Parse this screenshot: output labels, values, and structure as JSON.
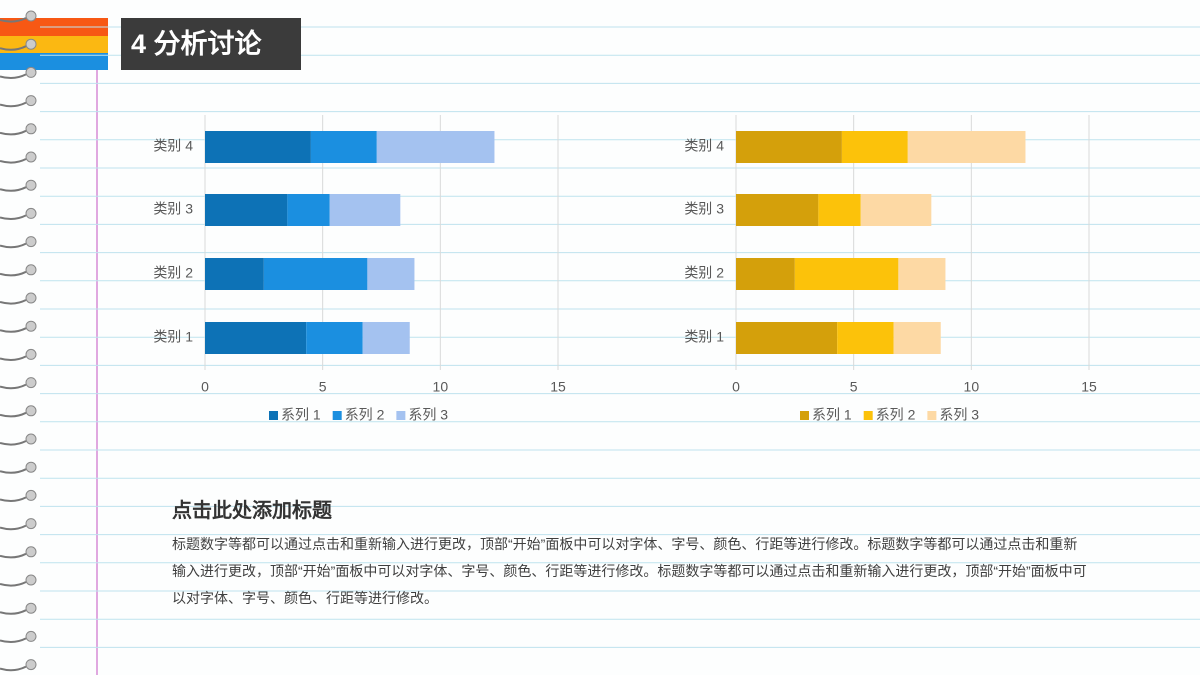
{
  "header": {
    "title": "4 分析讨论"
  },
  "section": {
    "heading": "点击此处添加标题",
    "body": "标题数字等都可以通过点击和重新输入进行更改，顶部“开始”面板中可以对字体、字号、颜色、行距等进行修改。标题数字等都可以通过点击和重新输入进行更改，顶部“开始”面板中可以对字体、字号、颜色、行距等进行修改。标题数字等都可以通过点击和重新输入进行更改，顶部“开始”面板中可以对字体、字号、颜色、行距等进行修改。"
  },
  "chart_data": [
    {
      "type": "stacked-bar-horizontal",
      "categories": [
        "类别 1",
        "类别 2",
        "类别 3",
        "类别 4"
      ],
      "series": [
        {
          "name": "系列 1",
          "color": "#0d72b6",
          "values": [
            4.3,
            2.5,
            3.5,
            4.5
          ]
        },
        {
          "name": "系列 2",
          "color": "#1b8fe0",
          "values": [
            2.4,
            4.4,
            1.8,
            2.8
          ]
        },
        {
          "name": "系列 3",
          "color": "#a4c2f0",
          "values": [
            2,
            2,
            3,
            5
          ]
        }
      ],
      "xlim": [
        0,
        15
      ],
      "xticks": [
        0,
        5,
        10,
        15
      ],
      "grid": true,
      "legend": "bottom"
    },
    {
      "type": "stacked-bar-horizontal",
      "categories": [
        "类别 1",
        "类别 2",
        "类别 3",
        "类别 4"
      ],
      "series": [
        {
          "name": "系列 1",
          "color": "#d4a00b",
          "values": [
            4.3,
            2.5,
            3.5,
            4.5
          ]
        },
        {
          "name": "系列 2",
          "color": "#fcc20a",
          "values": [
            2.4,
            4.4,
            1.8,
            2.8
          ]
        },
        {
          "name": "系列 3",
          "color": "#fdd9a4",
          "values": [
            2,
            2,
            3,
            5
          ]
        }
      ],
      "xlim": [
        0,
        15
      ],
      "xticks": [
        0,
        5,
        10,
        15
      ],
      "grid": true,
      "legend": "bottom"
    }
  ]
}
